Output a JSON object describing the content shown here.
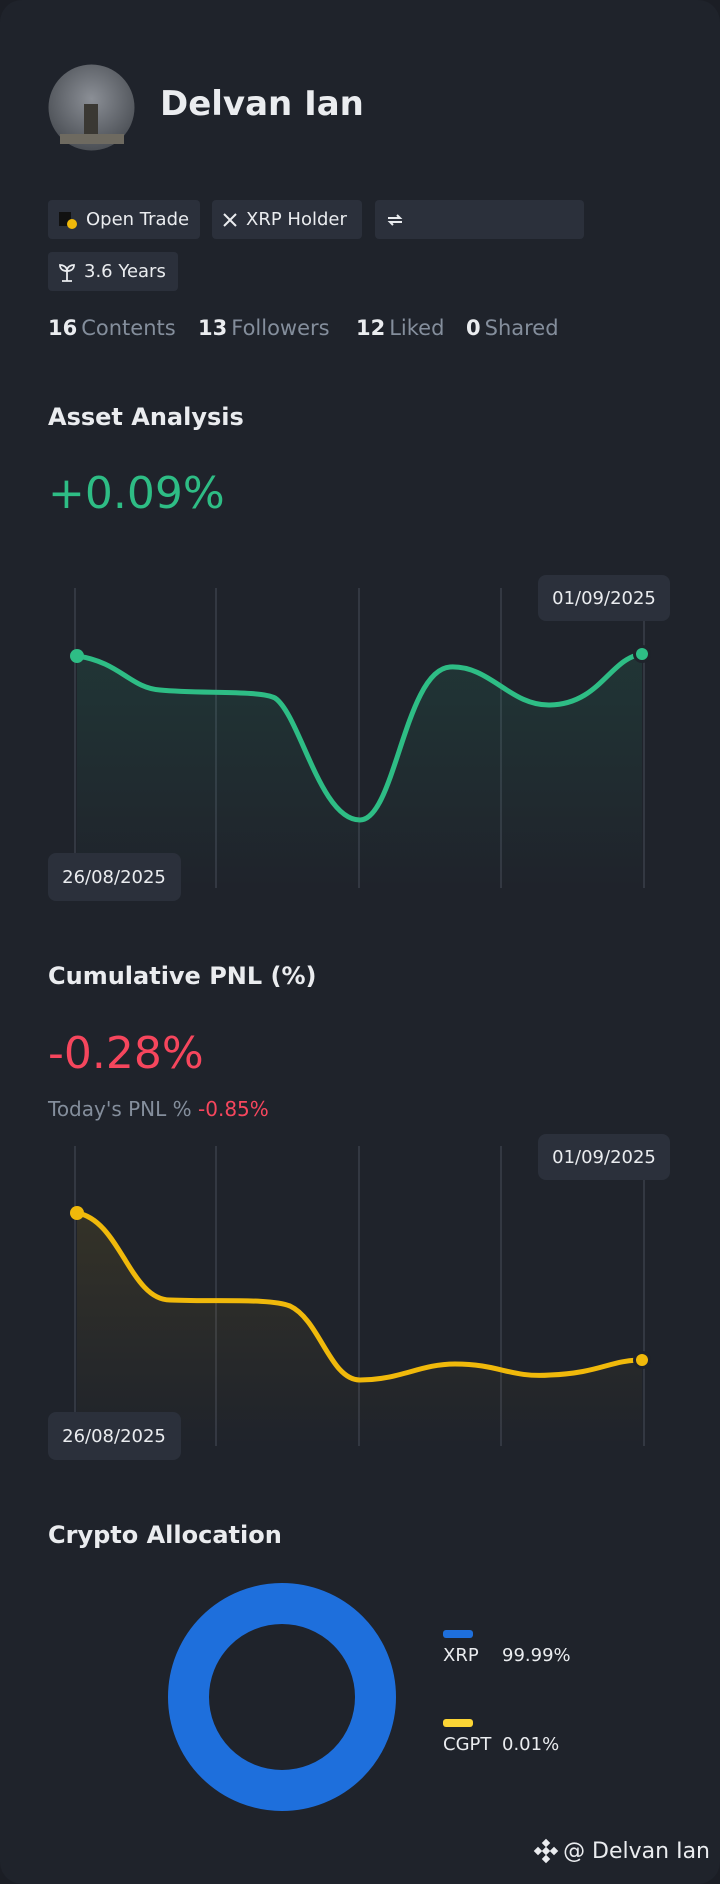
{
  "profile": {
    "name": "Delvan Ian",
    "badges": [
      "Open Trade",
      "XRP Holder",
      "3.6 Years"
    ],
    "stats": [
      {
        "value": 16,
        "label": "Contents"
      },
      {
        "value": 13,
        "label": "Followers"
      },
      {
        "value": 12,
        "label": "Liked"
      },
      {
        "value": 0,
        "label": "Shared"
      }
    ]
  },
  "asset_analysis": {
    "title": "Asset Analysis",
    "change": "+0.09%",
    "start_date": "26/08/2025",
    "end_date": "01/09/2025"
  },
  "cumulative_pnl": {
    "title": "Cumulative PNL (%)",
    "change": "-0.28%",
    "today_label": "Today's PNL %",
    "today_value": "-0.85%",
    "start_date": "26/08/2025",
    "end_date": "01/09/2025"
  },
  "crypto_allocation": {
    "title": "Crypto Allocation",
    "items": [
      {
        "name": "XRP",
        "value": 99.99,
        "value_label": "99.99%",
        "color": "#1e6fdc"
      },
      {
        "name": "CGPT",
        "value": 0.01,
        "value_label": "0.01%",
        "color": "#fcd535"
      }
    ]
  },
  "footer": {
    "handle": "@ Delvan Ian"
  }
}
